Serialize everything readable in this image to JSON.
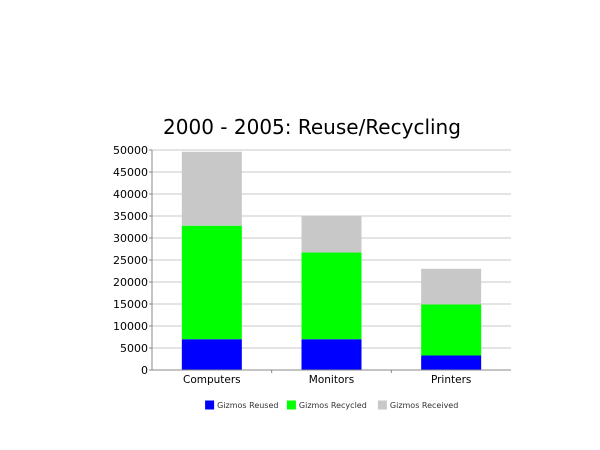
{
  "chart_data": {
    "type": "bar",
    "stacked": true,
    "title": "2000 - 2005: Reuse/Recycling",
    "xlabel": "",
    "ylabel": "",
    "categories": [
      "Computers",
      "Monitors",
      "Printers"
    ],
    "ylim": [
      0,
      50000
    ],
    "yticks": [
      "0",
      "5000",
      "10000",
      "15000",
      "20000",
      "25000",
      "30000",
      "35000",
      "40000",
      "45000",
      "50000"
    ],
    "grid": true,
    "legend_position": "bottom",
    "series": [
      {
        "name": "Gizmos Reused",
        "color": "#0000ff",
        "values": [
          7000,
          7000,
          3300
        ]
      },
      {
        "name": "Gizmos Recycled",
        "color": "#00ff00",
        "values": [
          25800,
          19700,
          11600
        ]
      },
      {
        "name": "Gizmos Received",
        "color": "#c8c8c8",
        "values": [
          16800,
          8300,
          8100
        ]
      }
    ]
  }
}
